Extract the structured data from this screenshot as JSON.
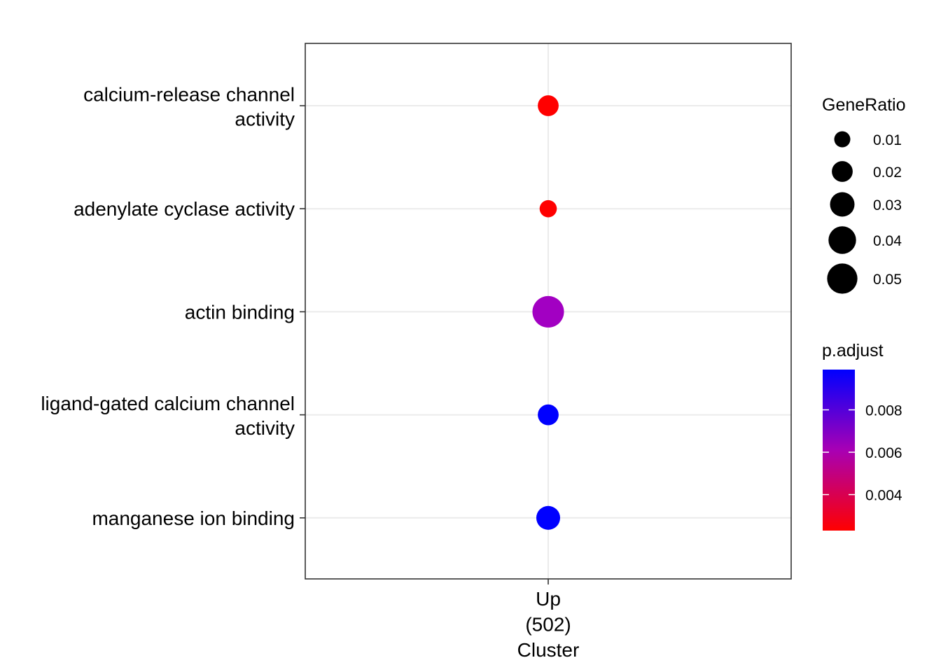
{
  "chart_data": {
    "type": "scatter",
    "xlabel": "Cluster",
    "x_categories": [
      {
        "label": "Up\n(502)"
      }
    ],
    "y_categories": [
      "calcium-release channel\nactivity",
      "adenylate cyclase activity",
      "actin binding",
      "ligand-gated calcium channel\nactivity",
      "manganese ion binding"
    ],
    "points": [
      {
        "x": "Up",
        "term": "calcium-release channel activity",
        "GeneRatio": 0.02,
        "p_adjust": 0.0025,
        "color": "#FF0000"
      },
      {
        "x": "Up",
        "term": "adenylate cyclase activity",
        "GeneRatio": 0.012,
        "p_adjust": 0.0025,
        "color": "#FF0000"
      },
      {
        "x": "Up",
        "term": "actin binding",
        "GeneRatio": 0.055,
        "p_adjust": 0.0084,
        "color": "#A200C2"
      },
      {
        "x": "Up",
        "term": "ligand-gated calcium channel activity",
        "GeneRatio": 0.02,
        "p_adjust": 0.0097,
        "color": "#0000FF"
      },
      {
        "x": "Up",
        "term": "manganese ion binding",
        "GeneRatio": 0.028,
        "p_adjust": 0.0097,
        "color": "#0000FF"
      }
    ],
    "size_legend": {
      "title": "GeneRatio",
      "values": [
        "0.01",
        "0.02",
        "0.03",
        "0.04",
        "0.05"
      ],
      "numeric": [
        0.01,
        0.02,
        0.03,
        0.04,
        0.05
      ]
    },
    "color_legend": {
      "title": "p.adjust",
      "ticks": [
        "0.008",
        "0.006",
        "0.004"
      ],
      "tick_values": [
        0.008,
        0.006,
        0.004
      ],
      "range": [
        0.0023,
        0.0099
      ],
      "low_color": "#FF0000",
      "high_color": "#0000FF"
    },
    "grid": true,
    "legend_position": "right"
  }
}
